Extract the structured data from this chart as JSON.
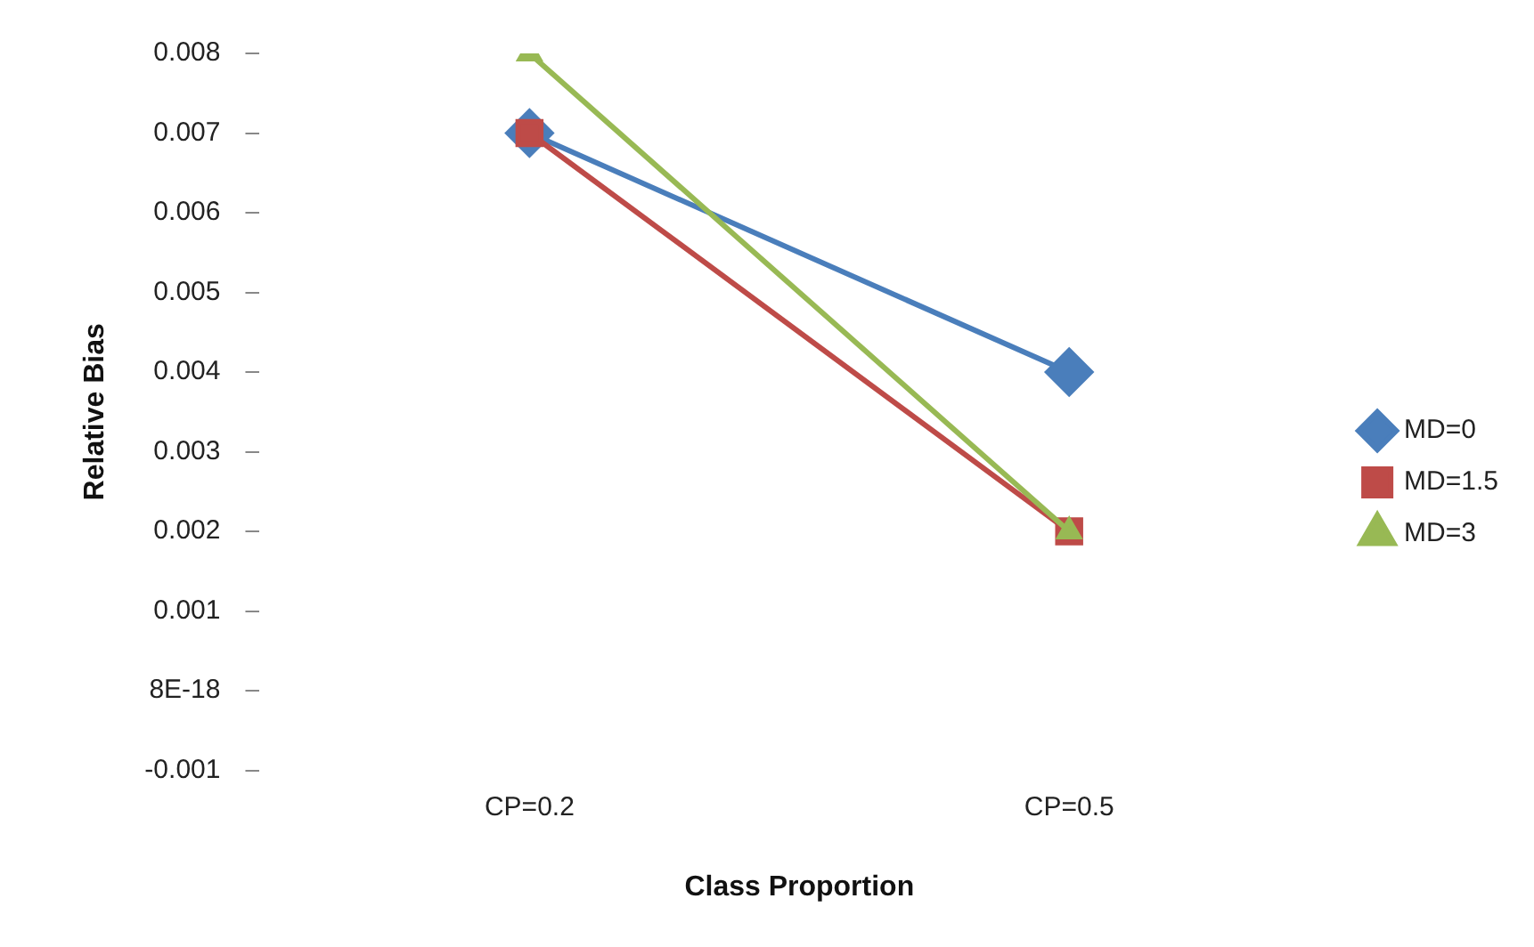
{
  "chart_data": {
    "type": "line",
    "xlabel": "Class Proportion",
    "ylabel": "Relative Bias",
    "categories": [
      "CP=0.2",
      "CP=0.5"
    ],
    "series": [
      {
        "name": "MD=0",
        "color": "#4a7ebb",
        "values": [
          0.007,
          0.004
        ],
        "marker": "diamond"
      },
      {
        "name": "MD=1.5",
        "color": "#be4b48",
        "values": [
          0.007,
          0.002
        ],
        "marker": "square"
      },
      {
        "name": "MD=3",
        "color": "#98b954",
        "values": [
          0.008,
          0.002
        ],
        "marker": "triangle"
      }
    ],
    "ylim": [
      -0.001,
      0.008
    ],
    "yticks": [
      -0.001,
      {
        "value": 0,
        "label": "8E-18"
      },
      0.001,
      0.002,
      0.003,
      0.004,
      0.005,
      0.006,
      0.007,
      0.008
    ],
    "grid": false,
    "legend": "right",
    "line_style": "solid"
  }
}
